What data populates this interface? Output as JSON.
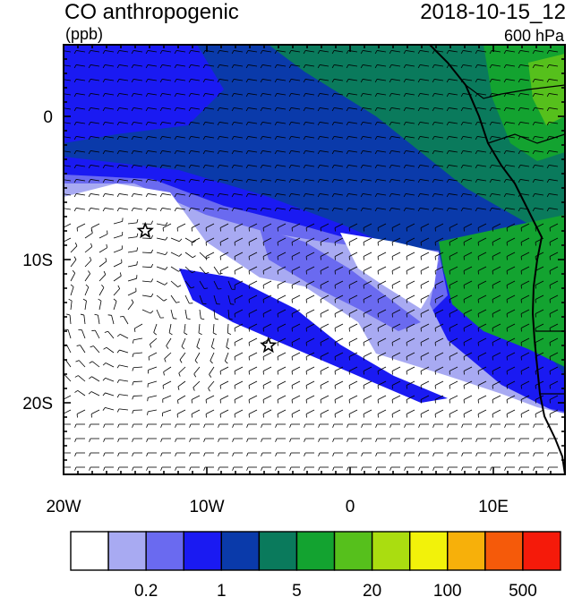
{
  "header": {
    "title": "CO anthropogenic",
    "units": "(ppb)",
    "datetime": "2018-10-15_12",
    "level": "600 hPa"
  },
  "map": {
    "lon_range": [
      -20,
      15
    ],
    "lat_range": [
      -25,
      5
    ],
    "x_ticks": [
      {
        "lon": -20,
        "label": "20W"
      },
      {
        "lon": -10,
        "label": "10W"
      },
      {
        "lon": 0,
        "label": "0"
      },
      {
        "lon": 10,
        "label": "10E"
      }
    ],
    "y_ticks": [
      {
        "lat": 0,
        "label": "0"
      },
      {
        "lat": -10,
        "label": "10S"
      },
      {
        "lat": -20,
        "label": "20S"
      }
    ],
    "markers": [
      {
        "type": "star",
        "lon": -14.3,
        "lat": -8.0
      },
      {
        "type": "star",
        "lon": -5.7,
        "lat": -16.0
      }
    ],
    "field_colors": {
      "background_high": "#0a7a5c",
      "plume_core": "#1a3fd8",
      "plume_edge": "#6a6af0",
      "plume_faint": "#a8aaf2",
      "clean": "#ffffff",
      "land_source": "#13a330",
      "land_high": "#56c01c"
    }
  },
  "colorbar": {
    "colors": [
      "#ffffff",
      "#a8aaf2",
      "#6a6af0",
      "#1a1af2",
      "#0a3aaa",
      "#0a7a5c",
      "#13a330",
      "#56c01c",
      "#aadd10",
      "#f2f20a",
      "#f7b00a",
      "#f55a0a",
      "#f51a0a"
    ],
    "labels": [
      "0.2",
      "1",
      "5",
      "20",
      "100",
      "500"
    ]
  }
}
